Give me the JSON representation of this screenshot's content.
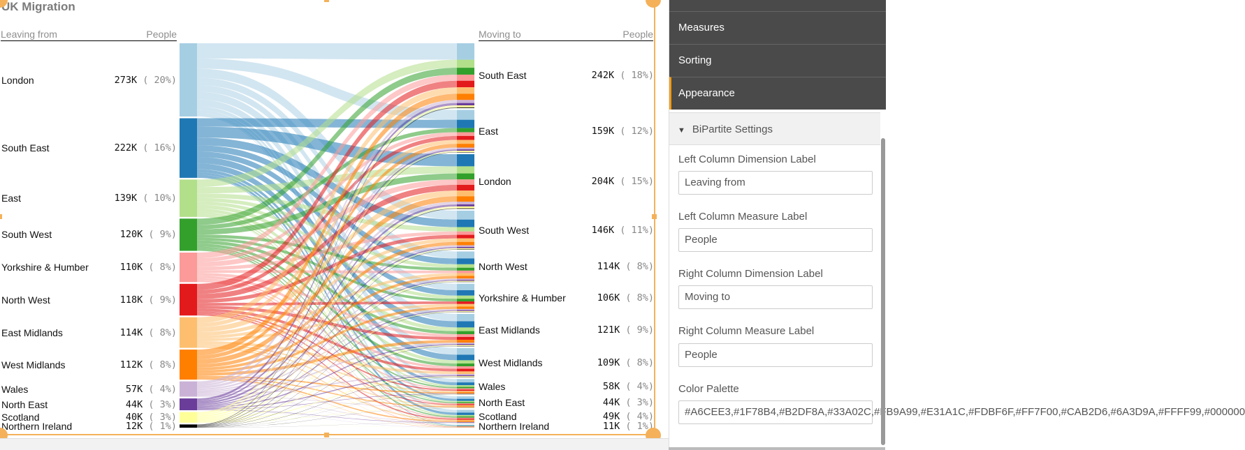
{
  "chart": {
    "title": "UK Migration",
    "left_header": {
      "dimension": "Leaving from",
      "measure": "People"
    },
    "right_header": {
      "dimension": "Moving to",
      "measure": "People"
    },
    "palette": [
      "#A6CEE3",
      "#1F78B4",
      "#B2DF8A",
      "#33A02C",
      "#FB9A99",
      "#E31A1C",
      "#FDBF6F",
      "#FF7F00",
      "#CAB2D6",
      "#6A3D9A",
      "#FFFF99",
      "#000000"
    ],
    "left_nodes": [
      {
        "name": "London",
        "value": "273K",
        "pct": "( 20%)",
        "k": 273
      },
      {
        "name": "South East",
        "value": "222K",
        "pct": "( 16%)",
        "k": 222
      },
      {
        "name": "East",
        "value": "139K",
        "pct": "( 10%)",
        "k": 139
      },
      {
        "name": "South West",
        "value": "120K",
        "pct": "( 9%)",
        "k": 120
      },
      {
        "name": "Yorkshire & Humber",
        "value": "110K",
        "pct": "( 8%)",
        "k": 110
      },
      {
        "name": "North West",
        "value": "118K",
        "pct": "( 9%)",
        "k": 118
      },
      {
        "name": "East Midlands",
        "value": "114K",
        "pct": "( 8%)",
        "k": 114
      },
      {
        "name": "West Midlands",
        "value": "112K",
        "pct": "( 8%)",
        "k": 112
      },
      {
        "name": "Wales",
        "value": "57K",
        "pct": "( 4%)",
        "k": 57
      },
      {
        "name": "North East",
        "value": "44K",
        "pct": "( 3%)",
        "k": 44
      },
      {
        "name": "Scotland",
        "value": "40K",
        "pct": "( 3%)",
        "k": 40
      },
      {
        "name": "Northern Ireland",
        "value": "12K",
        "pct": "( 1%)",
        "k": 12
      }
    ],
    "right_nodes": [
      {
        "name": "South East",
        "value": "242K",
        "pct": "( 18%)",
        "k": 242
      },
      {
        "name": "East",
        "value": "159K",
        "pct": "( 12%)",
        "k": 159
      },
      {
        "name": "London",
        "value": "204K",
        "pct": "( 15%)",
        "k": 204
      },
      {
        "name": "South West",
        "value": "146K",
        "pct": "( 11%)",
        "k": 146
      },
      {
        "name": "North West",
        "value": "114K",
        "pct": "( 8%)",
        "k": 114
      },
      {
        "name": "Yorkshire & Humber",
        "value": "106K",
        "pct": "( 8%)",
        "k": 106
      },
      {
        "name": "East Midlands",
        "value": "121K",
        "pct": "( 9%)",
        "k": 121
      },
      {
        "name": "West Midlands",
        "value": "109K",
        "pct": "( 8%)",
        "k": 109
      },
      {
        "name": "Wales",
        "value": "58K",
        "pct": "( 4%)",
        "k": 58
      },
      {
        "name": "North East",
        "value": "44K",
        "pct": "( 3%)",
        "k": 44
      },
      {
        "name": "Scotland",
        "value": "49K",
        "pct": "( 4%)",
        "k": 49
      },
      {
        "name": "Northern Ireland",
        "value": "11K",
        "pct": "( 1%)",
        "k": 11
      }
    ]
  },
  "panel": {
    "nav": [
      "Measures",
      "Sorting",
      "Appearance"
    ],
    "active": "Appearance",
    "section": "BiPartite Settings",
    "fields": [
      {
        "label": "Left Column Dimension Label",
        "value": "Leaving from"
      },
      {
        "label": "Left Column Measure Label",
        "value": "People"
      },
      {
        "label": "Right Column Dimension Label",
        "value": "Moving to"
      },
      {
        "label": "Right Column Measure Label",
        "value": "People"
      },
      {
        "label": "Color Palette",
        "value": "#A6CEE3,#1F78B4,#B2DF8A,#33A02C,#FB9A99,#E31A1C,#FDBF6F,#FF7F00,#CAB2D6,#6A3D9A,#FFFF99,#000000"
      }
    ]
  }
}
